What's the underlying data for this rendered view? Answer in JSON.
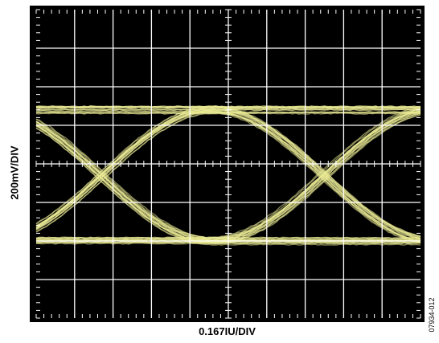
{
  "chart_data": {
    "type": "eye-diagram",
    "xlabel": "0.167IU/DIV",
    "ylabel": "200mV/DIV",
    "figure_id": "07934-012",
    "grid": true,
    "divisions": {
      "x": 10,
      "y": 8
    },
    "x_per_div": 0.167,
    "x_unit": "IU",
    "y_per_div": 200,
    "y_unit": "mV",
    "trace_color": "#ebeb96",
    "background_color": "#000000",
    "grid_color": "#ffffff",
    "levels_mV": {
      "high": 280,
      "low": -400,
      "crossing": -70
    },
    "crossing_points_div": [
      1.7,
      7.5
    ]
  }
}
